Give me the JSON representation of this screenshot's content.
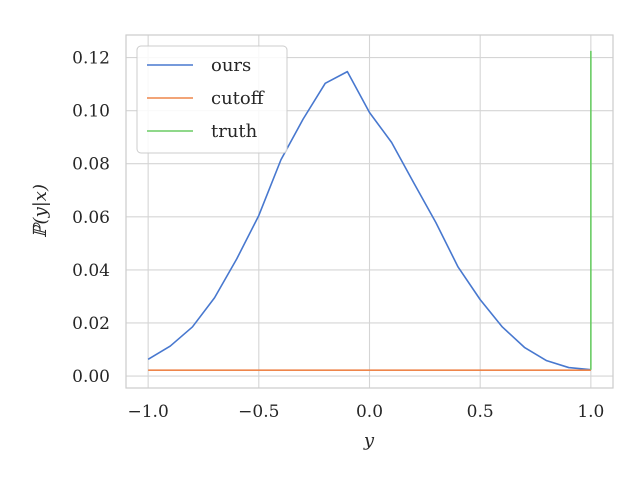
{
  "chart_data": {
    "type": "line",
    "xlabel": "y",
    "ylabel": "ℙ(y|x)",
    "xlim": [
      -1.1,
      1.1
    ],
    "ylim": [
      -0.0045,
      0.1285
    ],
    "xticks": [
      -1.0,
      -0.5,
      0.0,
      0.5,
      1.0
    ],
    "xtick_labels": [
      "−1.0",
      "−0.5",
      "0.0",
      "0.5",
      "1.0"
    ],
    "yticks": [
      0.0,
      0.02,
      0.04,
      0.06,
      0.08,
      0.1,
      0.12
    ],
    "ytick_labels": [
      "0.00",
      "0.02",
      "0.04",
      "0.06",
      "0.08",
      "0.10",
      "0.12"
    ],
    "grid": true,
    "legend_position": "top-left",
    "series": [
      {
        "name": "ours",
        "color": "#4878cf",
        "x": [
          -1.0,
          -0.9,
          -0.8,
          -0.7,
          -0.6,
          -0.5,
          -0.4,
          -0.3,
          -0.2,
          -0.1,
          0.0,
          0.1,
          0.2,
          0.3,
          0.4,
          0.5,
          0.6,
          0.7,
          0.8,
          0.9,
          1.0
        ],
        "y": [
          0.0063,
          0.0113,
          0.0185,
          0.0295,
          0.0441,
          0.0605,
          0.0815,
          0.0968,
          0.1103,
          0.1147,
          0.0993,
          0.088,
          0.0728,
          0.0578,
          0.0411,
          0.0288,
          0.0185,
          0.0108,
          0.0058,
          0.0032,
          0.0024
        ]
      },
      {
        "name": "cutoff",
        "color": "#ee854a",
        "x": [
          -1.0,
          1.0
        ],
        "y": [
          0.0022,
          0.0022
        ]
      },
      {
        "name": "truth",
        "color": "#6acc64",
        "x": [
          1.0,
          1.0
        ],
        "y": [
          0.0024,
          0.1225
        ]
      }
    ]
  }
}
